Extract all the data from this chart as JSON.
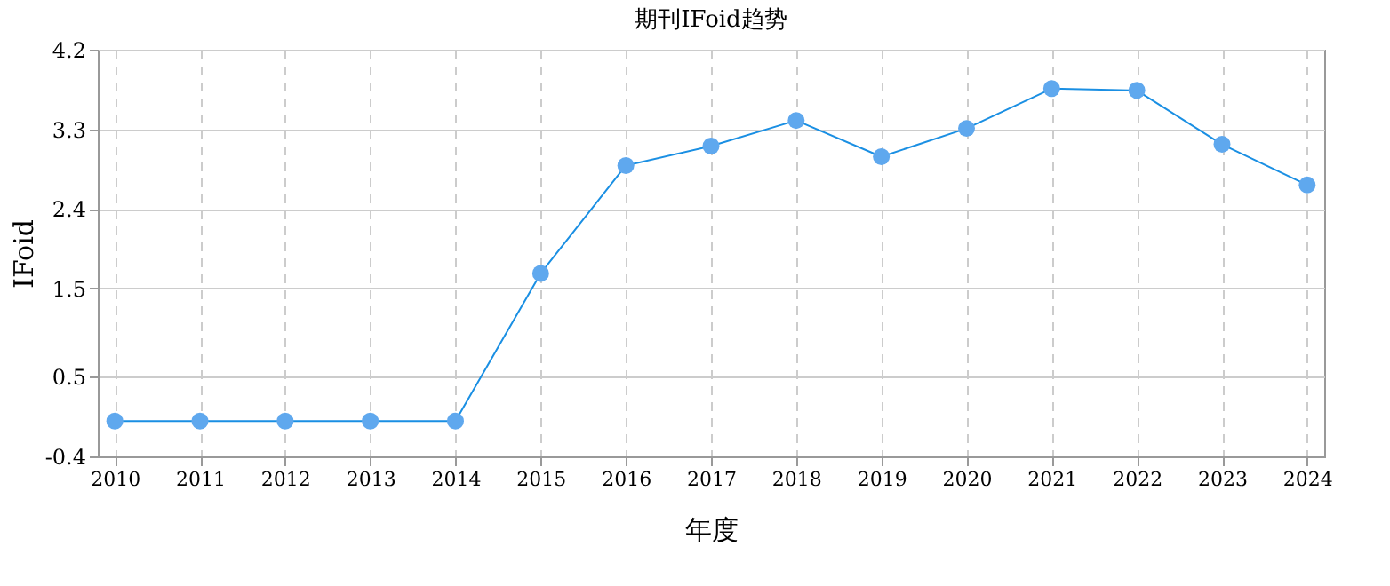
{
  "chart_data": {
    "type": "line",
    "title": "期刊IFoid趋势",
    "xlabel": "年度",
    "ylabel": "IFoid",
    "categories": [
      "2010",
      "2011",
      "2012",
      "2013",
      "2014",
      "2015",
      "2016",
      "2017",
      "2018",
      "2019",
      "2020",
      "2021",
      "2022",
      "2023",
      "2024"
    ],
    "series": [
      {
        "color": "#1a8fe3",
        "values": [
          0,
          0,
          0,
          0,
          0,
          1.67,
          2.89,
          3.11,
          3.4,
          2.99,
          3.31,
          3.76,
          3.74,
          3.13,
          2.67
        ]
      }
    ],
    "ylim": [
      -0.4,
      4.2
    ],
    "yticks": [
      -0.4,
      0.5,
      1.5,
      2.4,
      3.3,
      4.2
    ],
    "grid": true,
    "marker": "circle",
    "line_style": "solid"
  }
}
